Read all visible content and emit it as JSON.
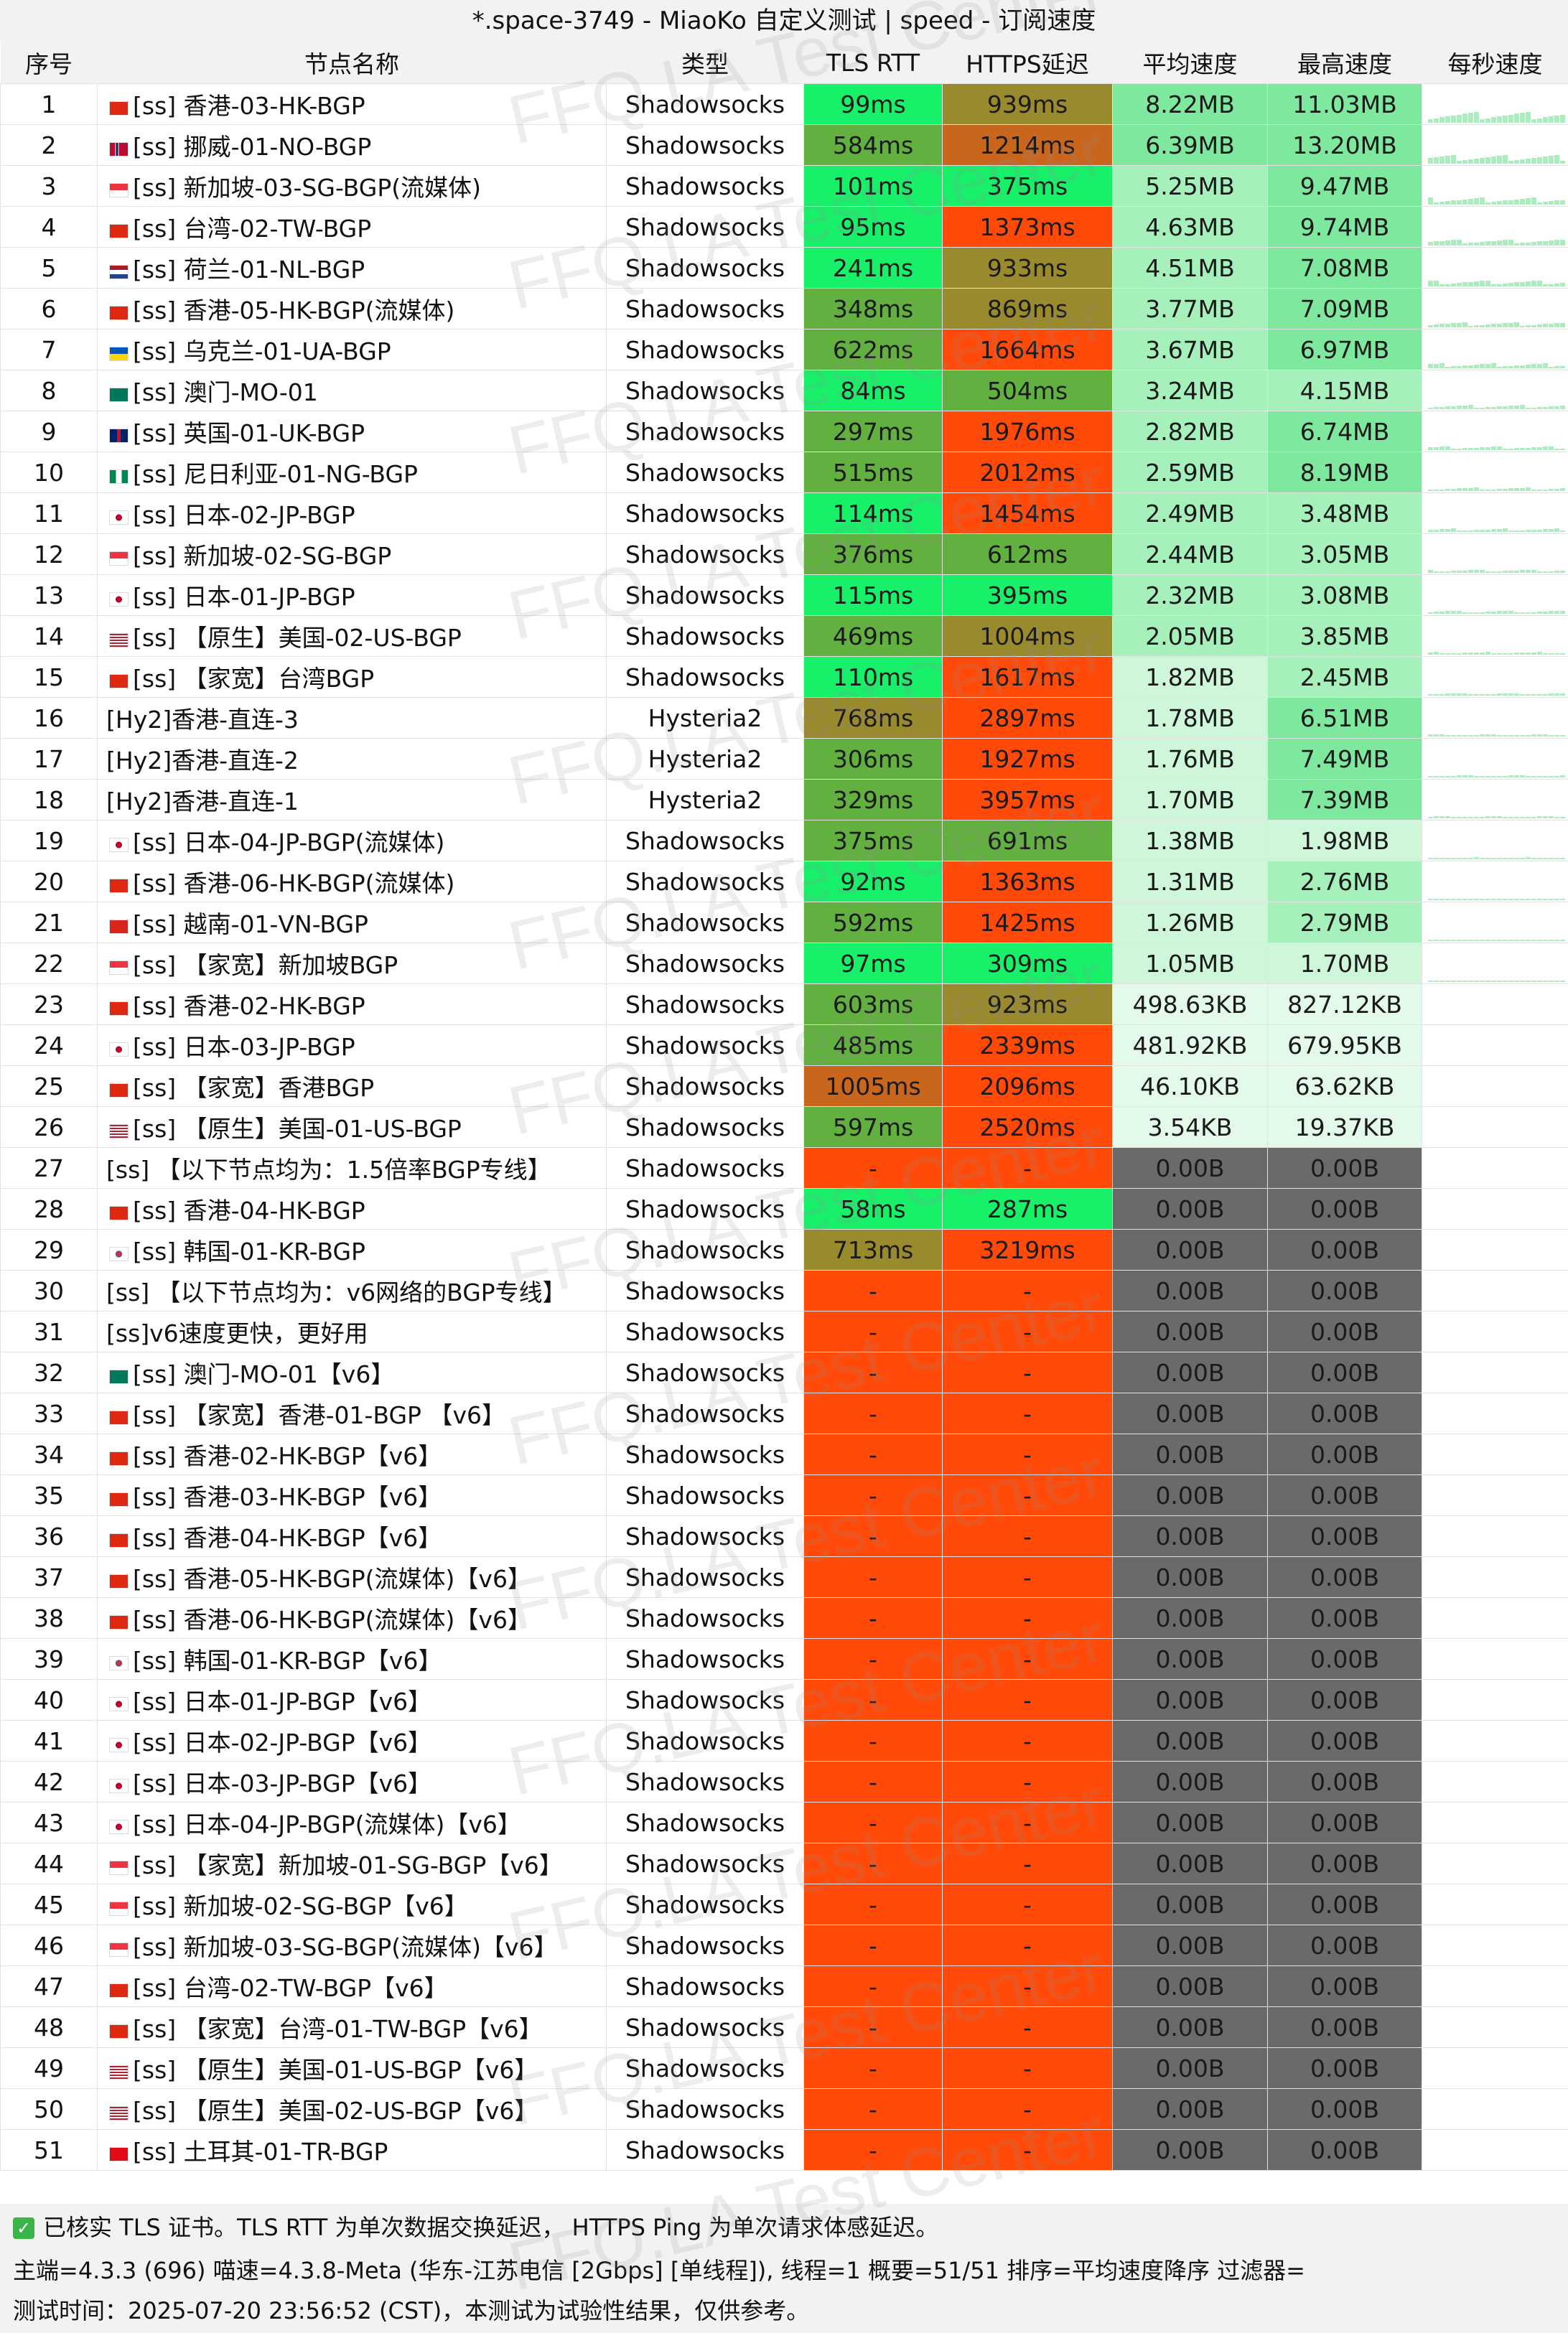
{
  "title": "*.space-3749 - MiaoKo 自定义测试 | speed - 订阅速度",
  "columns": [
    "序号",
    "节点名称",
    "类型",
    "TLS RTT",
    "HTTPS延迟",
    "平均速度",
    "最高速度",
    "每秒速度"
  ],
  "colors": {
    "rtt_low": "#19f06a",
    "rtt_mid": "#62b040",
    "rtt_high": "#9a8a2e",
    "rtt_vhigh": "#c8661e",
    "fail": "#ff4a0a",
    "speed_high": "#7ee89e",
    "speed_mid": "#a6f0bc",
    "speed_low": "#cdf7d8",
    "speed_vlow": "#e3faea",
    "speed_zero": "#6a6a6a"
  },
  "rows": [
    {
      "i": "1",
      "name": "[ss] 香港-03-HK-BGP",
      "flag": "hk",
      "type": "Shadowsocks",
      "tls": "99ms",
      "https": "939ms",
      "avg": "8.22MB",
      "max": "11.03MB",
      "spark": 1
    },
    {
      "i": "2",
      "name": "[ss] 挪威-01-NO-BGP",
      "flag": "no",
      "type": "Shadowsocks",
      "tls": "584ms",
      "https": "1214ms",
      "avg": "6.39MB",
      "max": "13.20MB",
      "spark": 1
    },
    {
      "i": "3",
      "name": "[ss] 新加坡-03-SG-BGP(流媒体)",
      "flag": "sg",
      "type": "Shadowsocks",
      "tls": "101ms",
      "https": "375ms",
      "avg": "5.25MB",
      "max": "9.47MB",
      "spark": 1
    },
    {
      "i": "4",
      "name": "[ss] 台湾-02-TW-BGP",
      "flag": "cn",
      "type": "Shadowsocks",
      "tls": "95ms",
      "https": "1373ms",
      "avg": "4.63MB",
      "max": "9.74MB",
      "spark": 1
    },
    {
      "i": "5",
      "name": "[ss] 荷兰-01-NL-BGP",
      "flag": "nl",
      "type": "Shadowsocks",
      "tls": "241ms",
      "https": "933ms",
      "avg": "4.51MB",
      "max": "7.08MB",
      "spark": 1
    },
    {
      "i": "6",
      "name": "[ss] 香港-05-HK-BGP(流媒体)",
      "flag": "hk",
      "type": "Shadowsocks",
      "tls": "348ms",
      "https": "869ms",
      "avg": "3.77MB",
      "max": "7.09MB",
      "spark": 1
    },
    {
      "i": "7",
      "name": "[ss] 乌克兰-01-UA-BGP",
      "flag": "ua",
      "type": "Shadowsocks",
      "tls": "622ms",
      "https": "1664ms",
      "avg": "3.67MB",
      "max": "6.97MB",
      "spark": 1
    },
    {
      "i": "8",
      "name": "[ss] 澳门-MO-01",
      "flag": "mo",
      "type": "Shadowsocks",
      "tls": "84ms",
      "https": "504ms",
      "avg": "3.24MB",
      "max": "4.15MB",
      "spark": 1
    },
    {
      "i": "9",
      "name": "[ss] 英国-01-UK-BGP",
      "flag": "uk",
      "type": "Shadowsocks",
      "tls": "297ms",
      "https": "1976ms",
      "avg": "2.82MB",
      "max": "6.74MB",
      "spark": 1
    },
    {
      "i": "10",
      "name": "[ss] 尼日利亚-01-NG-BGP",
      "flag": "ng",
      "type": "Shadowsocks",
      "tls": "515ms",
      "https": "2012ms",
      "avg": "2.59MB",
      "max": "8.19MB",
      "spark": 1
    },
    {
      "i": "11",
      "name": "[ss] 日本-02-JP-BGP",
      "flag": "jp",
      "type": "Shadowsocks",
      "tls": "114ms",
      "https": "1454ms",
      "avg": "2.49MB",
      "max": "3.48MB",
      "spark": 1
    },
    {
      "i": "12",
      "name": "[ss] 新加坡-02-SG-BGP",
      "flag": "sg",
      "type": "Shadowsocks",
      "tls": "376ms",
      "https": "612ms",
      "avg": "2.44MB",
      "max": "3.05MB",
      "spark": 1
    },
    {
      "i": "13",
      "name": "[ss] 日本-01-JP-BGP",
      "flag": "jp",
      "type": "Shadowsocks",
      "tls": "115ms",
      "https": "395ms",
      "avg": "2.32MB",
      "max": "3.08MB",
      "spark": 1
    },
    {
      "i": "14",
      "name": "[ss] 【原生】美国-02-US-BGP",
      "flag": "us",
      "type": "Shadowsocks",
      "tls": "469ms",
      "https": "1004ms",
      "avg": "2.05MB",
      "max": "3.85MB",
      "spark": 1
    },
    {
      "i": "15",
      "name": "[ss] 【家宽】台湾BGP",
      "flag": "cn",
      "type": "Shadowsocks",
      "tls": "110ms",
      "https": "1617ms",
      "avg": "1.82MB",
      "max": "2.45MB",
      "spark": 1
    },
    {
      "i": "16",
      "name": "[Hy2]香港-直连-3",
      "flag": "",
      "type": "Hysteria2",
      "tls": "768ms",
      "https": "2897ms",
      "avg": "1.78MB",
      "max": "6.51MB",
      "spark": 1
    },
    {
      "i": "17",
      "name": "[Hy2]香港-直连-2",
      "flag": "",
      "type": "Hysteria2",
      "tls": "306ms",
      "https": "1927ms",
      "avg": "1.76MB",
      "max": "7.49MB",
      "spark": 1
    },
    {
      "i": "18",
      "name": "[Hy2]香港-直连-1",
      "flag": "",
      "type": "Hysteria2",
      "tls": "329ms",
      "https": "3957ms",
      "avg": "1.70MB",
      "max": "7.39MB",
      "spark": 1
    },
    {
      "i": "19",
      "name": "[ss] 日本-04-JP-BGP(流媒体)",
      "flag": "jp",
      "type": "Shadowsocks",
      "tls": "375ms",
      "https": "691ms",
      "avg": "1.38MB",
      "max": "1.98MB",
      "spark": 1
    },
    {
      "i": "20",
      "name": "[ss] 香港-06-HK-BGP(流媒体)",
      "flag": "hk",
      "type": "Shadowsocks",
      "tls": "92ms",
      "https": "1363ms",
      "avg": "1.31MB",
      "max": "2.76MB",
      "spark": 1
    },
    {
      "i": "21",
      "name": "[ss] 越南-01-VN-BGP",
      "flag": "vn",
      "type": "Shadowsocks",
      "tls": "592ms",
      "https": "1425ms",
      "avg": "1.26MB",
      "max": "2.79MB",
      "spark": 1
    },
    {
      "i": "22",
      "name": "[ss] 【家宽】新加坡BGP",
      "flag": "sg",
      "type": "Shadowsocks",
      "tls": "97ms",
      "https": "309ms",
      "avg": "1.05MB",
      "max": "1.70MB",
      "spark": 1
    },
    {
      "i": "23",
      "name": "[ss] 香港-02-HK-BGP",
      "flag": "hk",
      "type": "Shadowsocks",
      "tls": "603ms",
      "https": "923ms",
      "avg": "498.63KB",
      "max": "827.12KB",
      "spark": 0
    },
    {
      "i": "24",
      "name": "[ss] 日本-03-JP-BGP",
      "flag": "jp",
      "type": "Shadowsocks",
      "tls": "485ms",
      "https": "2339ms",
      "avg": "481.92KB",
      "max": "679.95KB",
      "spark": 0
    },
    {
      "i": "25",
      "name": "[ss] 【家宽】香港BGP",
      "flag": "hk",
      "type": "Shadowsocks",
      "tls": "1005ms",
      "https": "2096ms",
      "avg": "46.10KB",
      "max": "63.62KB",
      "spark": 0
    },
    {
      "i": "26",
      "name": "[ss] 【原生】美国-01-US-BGP",
      "flag": "us",
      "type": "Shadowsocks",
      "tls": "597ms",
      "https": "2520ms",
      "avg": "3.54KB",
      "max": "19.37KB",
      "spark": 0
    },
    {
      "i": "27",
      "name": "[ss] 【以下节点均为：1.5倍率BGP专线】",
      "flag": "",
      "type": "Shadowsocks",
      "tls": "-",
      "https": "-",
      "avg": "0.00B",
      "max": "0.00B",
      "spark": 0
    },
    {
      "i": "28",
      "name": "[ss] 香港-04-HK-BGP",
      "flag": "hk",
      "type": "Shadowsocks",
      "tls": "58ms",
      "https": "287ms",
      "avg": "0.00B",
      "max": "0.00B",
      "spark": 0
    },
    {
      "i": "29",
      "name": "[ss] 韩国-01-KR-BGP",
      "flag": "kr",
      "type": "Shadowsocks",
      "tls": "713ms",
      "https": "3219ms",
      "avg": "0.00B",
      "max": "0.00B",
      "spark": 0
    },
    {
      "i": "30",
      "name": "[ss] 【以下节点均为：v6网络的BGP专线】",
      "flag": "",
      "type": "Shadowsocks",
      "tls": "-",
      "https": "-",
      "avg": "0.00B",
      "max": "0.00B",
      "spark": 0
    },
    {
      "i": "31",
      "name": "[ss]v6速度更快，更好用",
      "flag": "",
      "type": "Shadowsocks",
      "tls": "-",
      "https": "-",
      "avg": "0.00B",
      "max": "0.00B",
      "spark": 0
    },
    {
      "i": "32",
      "name": "[ss] 澳门-MO-01【v6】",
      "flag": "mo",
      "type": "Shadowsocks",
      "tls": "-",
      "https": "-",
      "avg": "0.00B",
      "max": "0.00B",
      "spark": 0
    },
    {
      "i": "33",
      "name": "[ss] 【家宽】香港-01-BGP 【v6】",
      "flag": "hk",
      "type": "Shadowsocks",
      "tls": "-",
      "https": "-",
      "avg": "0.00B",
      "max": "0.00B",
      "spark": 0
    },
    {
      "i": "34",
      "name": "[ss] 香港-02-HK-BGP【v6】",
      "flag": "hk",
      "type": "Shadowsocks",
      "tls": "-",
      "https": "-",
      "avg": "0.00B",
      "max": "0.00B",
      "spark": 0
    },
    {
      "i": "35",
      "name": "[ss] 香港-03-HK-BGP【v6】",
      "flag": "hk",
      "type": "Shadowsocks",
      "tls": "-",
      "https": "-",
      "avg": "0.00B",
      "max": "0.00B",
      "spark": 0
    },
    {
      "i": "36",
      "name": "[ss] 香港-04-HK-BGP【v6】",
      "flag": "hk",
      "type": "Shadowsocks",
      "tls": "-",
      "https": "-",
      "avg": "0.00B",
      "max": "0.00B",
      "spark": 0
    },
    {
      "i": "37",
      "name": "[ss] 香港-05-HK-BGP(流媒体)【v6】",
      "flag": "hk",
      "type": "Shadowsocks",
      "tls": "-",
      "https": "-",
      "avg": "0.00B",
      "max": "0.00B",
      "spark": 0
    },
    {
      "i": "38",
      "name": "[ss] 香港-06-HK-BGP(流媒体)【v6】",
      "flag": "hk",
      "type": "Shadowsocks",
      "tls": "-",
      "https": "-",
      "avg": "0.00B",
      "max": "0.00B",
      "spark": 0
    },
    {
      "i": "39",
      "name": "[ss] 韩国-01-KR-BGP【v6】",
      "flag": "kr",
      "type": "Shadowsocks",
      "tls": "-",
      "https": "-",
      "avg": "0.00B",
      "max": "0.00B",
      "spark": 0
    },
    {
      "i": "40",
      "name": "[ss] 日本-01-JP-BGP【v6】",
      "flag": "jp",
      "type": "Shadowsocks",
      "tls": "-",
      "https": "-",
      "avg": "0.00B",
      "max": "0.00B",
      "spark": 0
    },
    {
      "i": "41",
      "name": "[ss] 日本-02-JP-BGP【v6】",
      "flag": "jp",
      "type": "Shadowsocks",
      "tls": "-",
      "https": "-",
      "avg": "0.00B",
      "max": "0.00B",
      "spark": 0
    },
    {
      "i": "42",
      "name": "[ss] 日本-03-JP-BGP【v6】",
      "flag": "jp",
      "type": "Shadowsocks",
      "tls": "-",
      "https": "-",
      "avg": "0.00B",
      "max": "0.00B",
      "spark": 0
    },
    {
      "i": "43",
      "name": "[ss] 日本-04-JP-BGP(流媒体)【v6】",
      "flag": "jp",
      "type": "Shadowsocks",
      "tls": "-",
      "https": "-",
      "avg": "0.00B",
      "max": "0.00B",
      "spark": 0
    },
    {
      "i": "44",
      "name": "[ss] 【家宽】新加坡-01-SG-BGP【v6】",
      "flag": "sg",
      "type": "Shadowsocks",
      "tls": "-",
      "https": "-",
      "avg": "0.00B",
      "max": "0.00B",
      "spark": 0
    },
    {
      "i": "45",
      "name": "[ss] 新加坡-02-SG-BGP【v6】",
      "flag": "sg",
      "type": "Shadowsocks",
      "tls": "-",
      "https": "-",
      "avg": "0.00B",
      "max": "0.00B",
      "spark": 0
    },
    {
      "i": "46",
      "name": "[ss] 新加坡-03-SG-BGP(流媒体)【v6】",
      "flag": "sg",
      "type": "Shadowsocks",
      "tls": "-",
      "https": "-",
      "avg": "0.00B",
      "max": "0.00B",
      "spark": 0
    },
    {
      "i": "47",
      "name": "[ss] 台湾-02-TW-BGP【v6】",
      "flag": "cn",
      "type": "Shadowsocks",
      "tls": "-",
      "https": "-",
      "avg": "0.00B",
      "max": "0.00B",
      "spark": 0
    },
    {
      "i": "48",
      "name": "[ss] 【家宽】台湾-01-TW-BGP【v6】",
      "flag": "cn",
      "type": "Shadowsocks",
      "tls": "-",
      "https": "-",
      "avg": "0.00B",
      "max": "0.00B",
      "spark": 0
    },
    {
      "i": "49",
      "name": "[ss] 【原生】美国-01-US-BGP【v6】",
      "flag": "us",
      "type": "Shadowsocks",
      "tls": "-",
      "https": "-",
      "avg": "0.00B",
      "max": "0.00B",
      "spark": 0
    },
    {
      "i": "50",
      "name": "[ss] 【原生】美国-02-US-BGP【v6】",
      "flag": "us",
      "type": "Shadowsocks",
      "tls": "-",
      "https": "-",
      "avg": "0.00B",
      "max": "0.00B",
      "spark": 0
    },
    {
      "i": "51",
      "name": "[ss] 土耳其-01-TR-BGP",
      "flag": "tr",
      "type": "Shadowsocks",
      "tls": "-",
      "https": "-",
      "avg": "0.00B",
      "max": "0.00B",
      "spark": 0
    }
  ],
  "footer": {
    "line1": "已核实 TLS 证书。TLS RTT 为单次数据交换延迟， HTTPS Ping 为单次请求体感延迟。",
    "line2": "主端=4.3.3 (696) 喵速=4.3.8-Meta (华东-江苏电信 [2Gbps] [单线程]), 线程=1 概要=51/51 排序=平均速度降序 过滤器=",
    "line3": "测试时间：2025-07-20 23:56:52 (CST)，本测试为试验性结果，仅供参考。"
  },
  "watermark": "FFQ.LA Test Center"
}
